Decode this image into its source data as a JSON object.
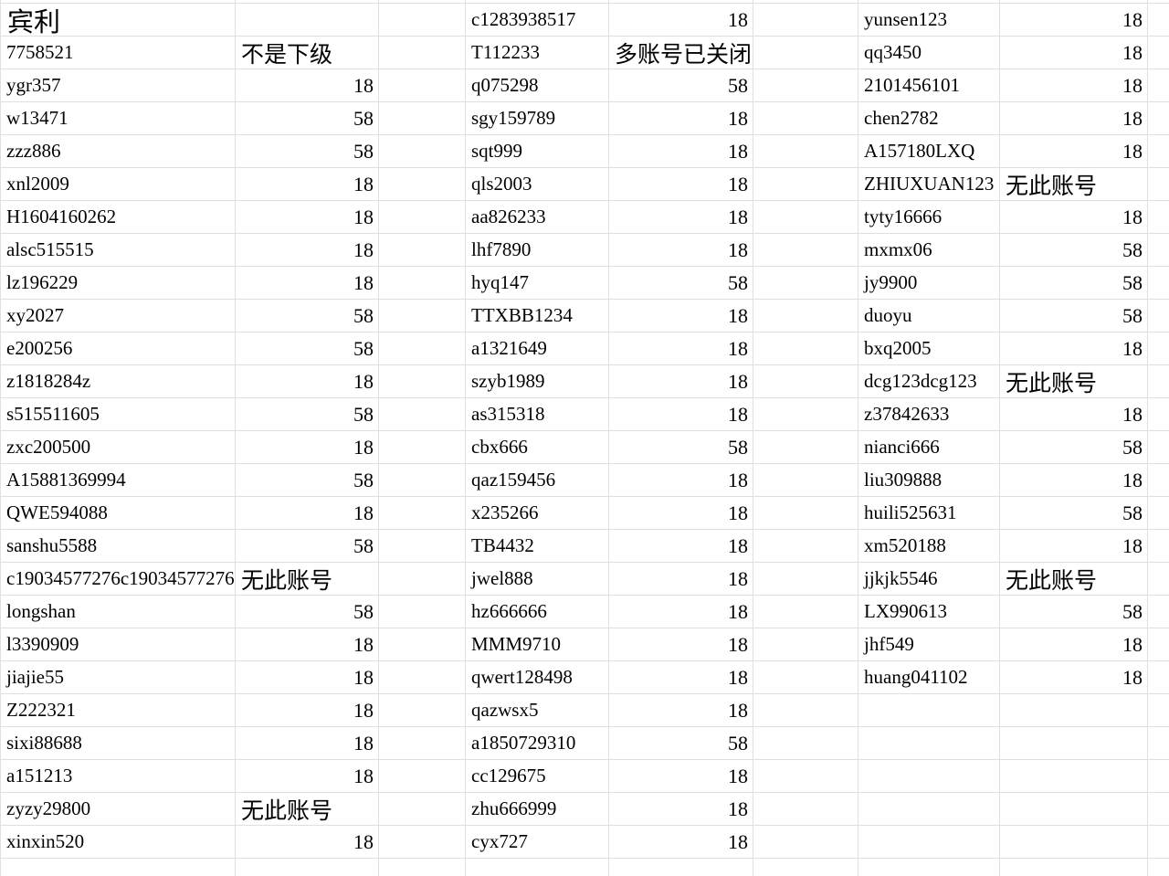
{
  "colors": {
    "gridline": "#e0e0e0",
    "background": "#ffffff",
    "text": "#000000"
  },
  "sheet": {
    "value_options_seen": [
      "18",
      "58"
    ],
    "sections": [
      {
        "rows": [
          {
            "name": "宾利",
            "value": ""
          },
          {
            "name": "7758521",
            "value": "不是下级"
          },
          {
            "name": "ygr357",
            "value": "18"
          },
          {
            "name": "w13471",
            "value": "58"
          },
          {
            "name": "zzz886",
            "value": "58"
          },
          {
            "name": "xnl2009",
            "value": "18"
          },
          {
            "name": "H1604160262",
            "value": "18"
          },
          {
            "name": "alsc515515",
            "value": "18"
          },
          {
            "name": "lz196229",
            "value": "18"
          },
          {
            "name": "xy2027",
            "value": "58"
          },
          {
            "name": "e200256",
            "value": "58"
          },
          {
            "name": "z1818284z",
            "value": "18"
          },
          {
            "name": "s515511605",
            "value": "58"
          },
          {
            "name": "zxc200500",
            "value": "18"
          },
          {
            "name": "A15881369994",
            "value": "58"
          },
          {
            "name": "QWE594088",
            "value": "18"
          },
          {
            "name": "sanshu5588",
            "value": "58"
          },
          {
            "name": "c19034577276c19034577276",
            "value": "无此账号"
          },
          {
            "name": "longshan",
            "value": "58"
          },
          {
            "name": "l3390909",
            "value": "18"
          },
          {
            "name": "jiajie55",
            "value": "18"
          },
          {
            "name": "Z222321",
            "value": "18"
          },
          {
            "name": "sixi88688",
            "value": "18"
          },
          {
            "name": "a151213",
            "value": "18"
          },
          {
            "name": "zyzy29800",
            "value": "无此账号"
          },
          {
            "name": "xinxin520",
            "value": "18"
          }
        ]
      },
      {
        "rows": [
          {
            "name": "c1283938517",
            "value": "18"
          },
          {
            "name": "T112233",
            "value": "多账号已关闭"
          },
          {
            "name": "q075298",
            "value": "58"
          },
          {
            "name": "sgy159789",
            "value": "18"
          },
          {
            "name": "sqt999",
            "value": "18"
          },
          {
            "name": "qls2003",
            "value": "18"
          },
          {
            "name": "aa826233",
            "value": "18"
          },
          {
            "name": "lhf7890",
            "value": "18"
          },
          {
            "name": "hyq147",
            "value": "58"
          },
          {
            "name": "TTXBB1234",
            "value": "18"
          },
          {
            "name": "a1321649",
            "value": "18"
          },
          {
            "name": "szyb1989",
            "value": "18"
          },
          {
            "name": "as315318",
            "value": "18"
          },
          {
            "name": "cbx666",
            "value": "58"
          },
          {
            "name": "qaz159456",
            "value": "18"
          },
          {
            "name": "x235266",
            "value": "18"
          },
          {
            "name": "TB4432",
            "value": "18"
          },
          {
            "name": "jwel888",
            "value": "18"
          },
          {
            "name": "hz666666",
            "value": "18"
          },
          {
            "name": "MMM9710",
            "value": "18"
          },
          {
            "name": "qwert128498",
            "value": "18"
          },
          {
            "name": "qazwsx5",
            "value": "18"
          },
          {
            "name": "a1850729310",
            "value": "58"
          },
          {
            "name": "cc129675",
            "value": "18"
          },
          {
            "name": "zhu666999",
            "value": "18"
          },
          {
            "name": "cyx727",
            "value": "18"
          }
        ]
      },
      {
        "rows": [
          {
            "name": "yunsen123",
            "value": "18"
          },
          {
            "name": "qq3450",
            "value": "18"
          },
          {
            "name": "2101456101",
            "value": "18"
          },
          {
            "name": "chen2782",
            "value": "18"
          },
          {
            "name": "A157180LXQ",
            "value": "18"
          },
          {
            "name": "ZHIUXUAN123",
            "value": "无此账号"
          },
          {
            "name": "tyty16666",
            "value": "18"
          },
          {
            "name": "mxmx06",
            "value": "58"
          },
          {
            "name": "jy9900",
            "value": "58"
          },
          {
            "name": "duoyu",
            "value": "58"
          },
          {
            "name": "bxq2005",
            "value": "18"
          },
          {
            "name": "dcg123dcg123",
            "value": "无此账号"
          },
          {
            "name": "z37842633",
            "value": "18"
          },
          {
            "name": "nianci666",
            "value": "58"
          },
          {
            "name": "liu309888",
            "value": "18"
          },
          {
            "name": "huili525631",
            "value": "58"
          },
          {
            "name": "xm520188",
            "value": "18"
          },
          {
            "name": "jjkjk5546",
            "value": "无此账号"
          },
          {
            "name": "LX990613",
            "value": "58"
          },
          {
            "name": "jhf549",
            "value": "18"
          },
          {
            "name": "huang041102",
            "value": "18"
          },
          {
            "name": "",
            "value": ""
          },
          {
            "name": "",
            "value": ""
          },
          {
            "name": "",
            "value": ""
          },
          {
            "name": "",
            "value": ""
          },
          {
            "name": "",
            "value": ""
          }
        ]
      }
    ]
  }
}
